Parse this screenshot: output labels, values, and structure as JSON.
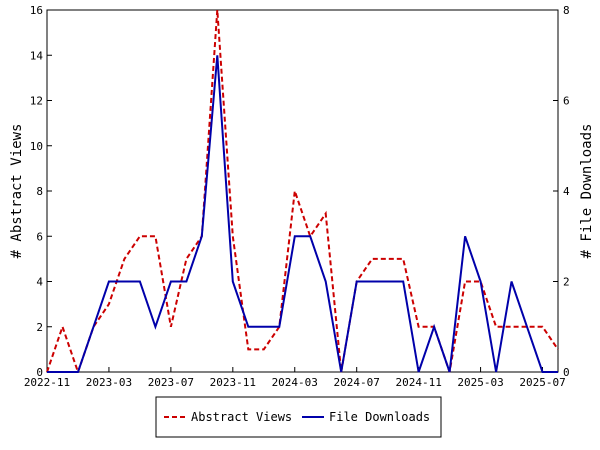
{
  "chart_data": {
    "type": "line",
    "xlabel": "",
    "ylabel": "# Abstract Views",
    "y2label": "# File Downloads",
    "ylim": [
      0,
      16
    ],
    "y2lim": [
      0,
      8
    ],
    "y_ticks": [
      0,
      2,
      4,
      6,
      8,
      10,
      12,
      14,
      16
    ],
    "y2_ticks": [
      0,
      2,
      4,
      6,
      8
    ],
    "x_tick_labels": [
      "2022-11",
      "2023-03",
      "2023-07",
      "2023-11",
      "2024-03",
      "2024-07",
      "2024-11",
      "2025-03",
      "2025-07"
    ],
    "x": [
      "2022-11",
      "2022-12",
      "2023-01",
      "2023-02",
      "2023-03",
      "2023-04",
      "2023-05",
      "2023-06",
      "2023-07",
      "2023-08",
      "2023-09",
      "2023-10",
      "2023-11",
      "2023-12",
      "2024-01",
      "2024-02",
      "2024-03",
      "2024-04",
      "2024-05",
      "2024-06",
      "2024-07",
      "2024-08",
      "2024-09",
      "2024-10",
      "2024-11",
      "2024-12",
      "2025-01",
      "2025-02",
      "2025-03",
      "2025-04",
      "2025-05",
      "2025-06",
      "2025-07",
      "2025-08"
    ],
    "grid": false,
    "legend_position": "bottom",
    "series": [
      {
        "name": "Abstract Views",
        "axis": "left",
        "color": "#cc0000",
        "style": "dashed",
        "values": [
          0,
          2,
          0,
          2,
          3,
          5,
          6,
          6,
          2,
          5,
          6,
          16,
          6,
          1,
          1,
          2,
          8,
          6,
          7,
          0,
          4,
          5,
          5,
          5,
          2,
          2,
          0,
          4,
          4,
          2,
          2,
          2,
          2,
          1
        ]
      },
      {
        "name": "File Downloads",
        "axis": "right",
        "color": "#0000aa",
        "style": "solid",
        "values": [
          0,
          0,
          0,
          1,
          2,
          2,
          2,
          1,
          2,
          2,
          3,
          7,
          2,
          1,
          1,
          1,
          3,
          3,
          2,
          0,
          2,
          2,
          2,
          2,
          0,
          1,
          0,
          3,
          2,
          0,
          2,
          1,
          0,
          0
        ]
      }
    ]
  }
}
